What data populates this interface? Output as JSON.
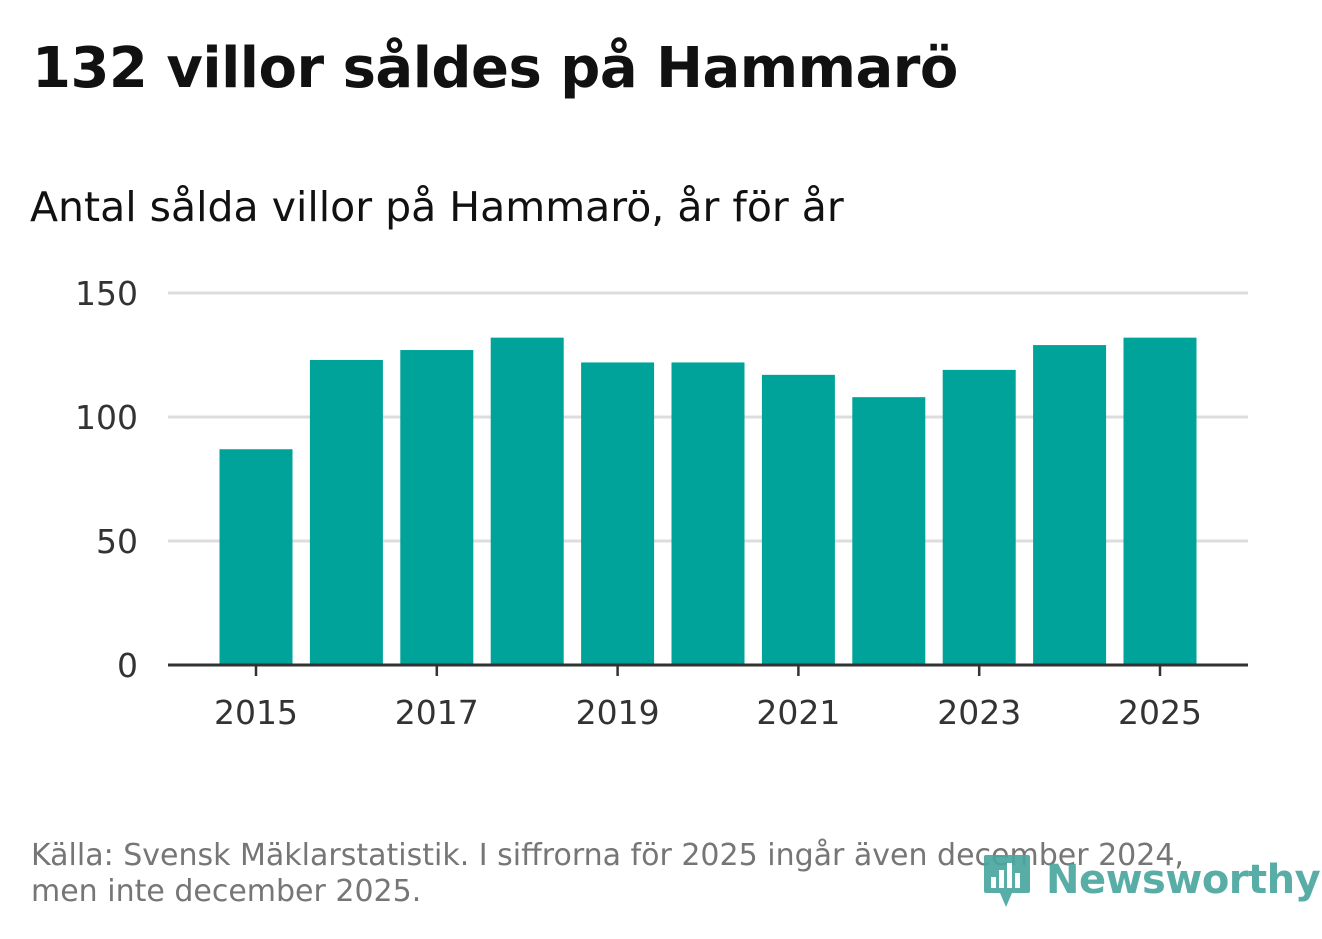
{
  "title": "132 villor såldes på Hammarö",
  "subtitle": "Antal sålda villor på Hammarö, år för år",
  "source": {
    "line1": "Källa: Svensk Mäklarstatistik. I siffrorna för 2025 ingår även december 2024,",
    "line2": "men inte december 2025."
  },
  "logo": {
    "text": "Newsworthy",
    "icon": "newsworthy-bar-chart-icon",
    "color": "#4aa79f"
  },
  "colors": {
    "bar": "#00a39a",
    "grid": "#dddddd",
    "axis": "#333333",
    "tick_text": "#333333"
  },
  "chart_data": {
    "type": "bar",
    "title": "Antal sålda villor på Hammarö, år för år",
    "xlabel": "",
    "ylabel": "",
    "categories": [
      "2015",
      "2016",
      "2017",
      "2018",
      "2019",
      "2020",
      "2021",
      "2022",
      "2023",
      "2024",
      "2025"
    ],
    "values": [
      87,
      123,
      127,
      132,
      122,
      122,
      117,
      108,
      119,
      129,
      132
    ],
    "x_tick_labels": [
      "2015",
      "2017",
      "2019",
      "2021",
      "2023",
      "2025"
    ],
    "ylim": [
      0,
      150
    ],
    "y_ticks": [
      0,
      50,
      100,
      150
    ],
    "grid": true,
    "legend": "none"
  }
}
